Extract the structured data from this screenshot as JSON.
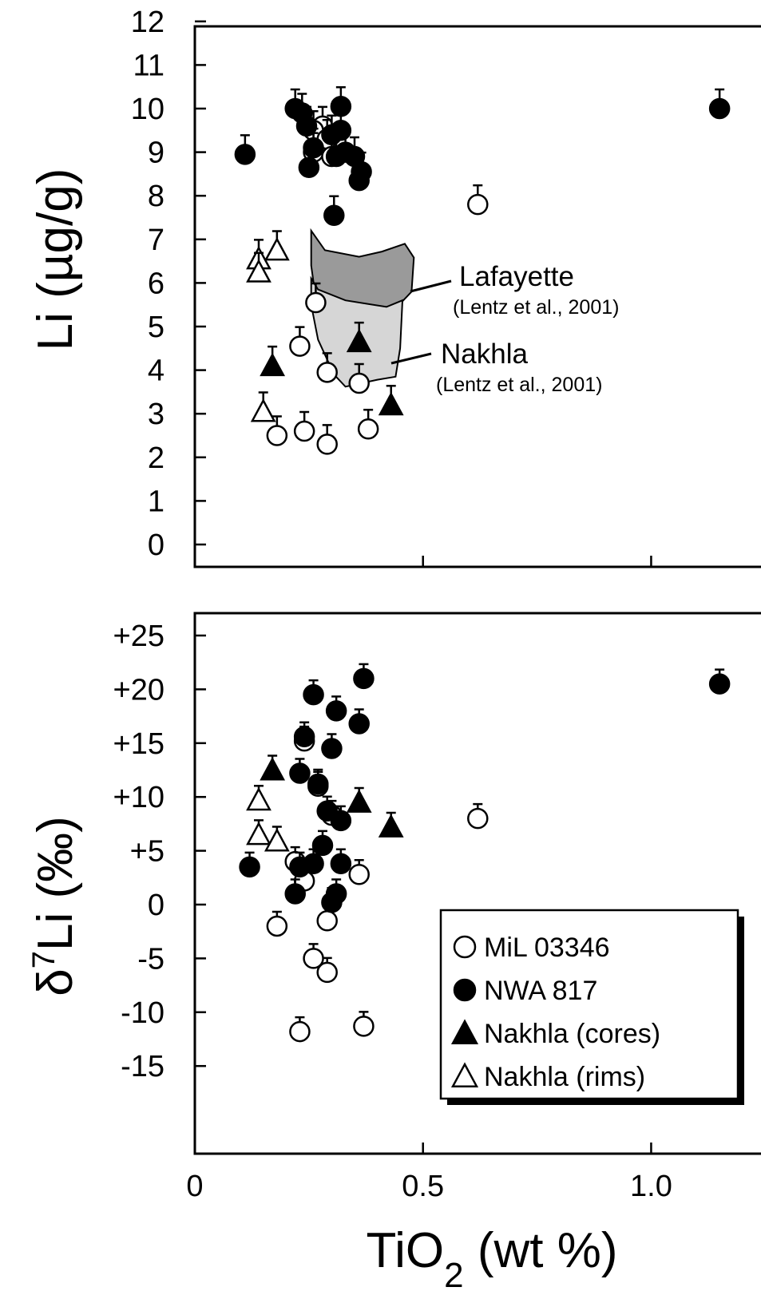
{
  "chart_data": [
    {
      "type": "scatter",
      "ylabel": "Li (µg/g)",
      "ylim": [
        0,
        12
      ],
      "xlim": [
        0,
        1.2
      ],
      "y_ticks": [
        "0",
        "1",
        "2",
        "3",
        "4",
        "5",
        "6",
        "7",
        "8",
        "9",
        "10",
        "11",
        "12"
      ],
      "regions": [
        {
          "name": "Lafayette",
          "note": "(Lentz et al., 2001)",
          "color": "#9a9a9a",
          "outline": [
            [
              0.255,
              7.2
            ],
            [
              0.285,
              6.75
            ],
            [
              0.36,
              6.6
            ],
            [
              0.41,
              6.72
            ],
            [
              0.46,
              6.9
            ],
            [
              0.48,
              6.58
            ],
            [
              0.475,
              5.8
            ],
            [
              0.43,
              5.3
            ],
            [
              0.33,
              5.35
            ],
            [
              0.265,
              5.65
            ],
            [
              0.255,
              6.4
            ]
          ]
        },
        {
          "name": "Nakhla",
          "note": "(Lentz et al., 2001)",
          "color": "#d6d6d6",
          "outline": [
            [
              0.255,
              6.1
            ],
            [
              0.27,
              5.85
            ],
            [
              0.33,
              5.6
            ],
            [
              0.42,
              5.45
            ],
            [
              0.455,
              5.6
            ],
            [
              0.45,
              4.5
            ],
            [
              0.44,
              3.85
            ],
            [
              0.4,
              3.78
            ],
            [
              0.33,
              3.62
            ],
            [
              0.305,
              3.9
            ],
            [
              0.27,
              4.7
            ],
            [
              0.255,
              5.5
            ]
          ]
        }
      ],
      "series": [
        {
          "name": "MiL 03346",
          "marker": "open-circle",
          "points": [
            [
              0.28,
              9.6
            ],
            [
              0.26,
              9.5
            ],
            [
              0.29,
              9.3
            ],
            [
              0.26,
              9.0
            ],
            [
              0.3,
              8.9
            ],
            [
              0.62,
              7.8
            ],
            [
              0.265,
              5.55
            ],
            [
              0.23,
              4.55
            ],
            [
              0.29,
              3.95
            ],
            [
              0.36,
              3.7
            ],
            [
              0.18,
              2.5
            ],
            [
              0.24,
              2.6
            ],
            [
              0.29,
              2.3
            ],
            [
              0.38,
              2.65
            ]
          ]
        },
        {
          "name": "NWA 817",
          "marker": "filled-circle",
          "points": [
            [
              0.11,
              8.95
            ],
            [
              0.22,
              10.0
            ],
            [
              0.235,
              9.9
            ],
            [
              0.32,
              10.05
            ],
            [
              0.245,
              9.6
            ],
            [
              0.26,
              9.1
            ],
            [
              0.3,
              9.4
            ],
            [
              0.32,
              9.5
            ],
            [
              0.33,
              9.0
            ],
            [
              0.31,
              8.9
            ],
            [
              0.35,
              8.9
            ],
            [
              0.365,
              8.55
            ],
            [
              0.36,
              8.35
            ],
            [
              0.25,
              8.65
            ],
            [
              0.305,
              7.55
            ],
            [
              1.15,
              10.0
            ]
          ]
        },
        {
          "name": "Nakhla (cores)",
          "marker": "filled-triangle",
          "points": [
            [
              0.17,
              4.1
            ],
            [
              0.36,
              4.65
            ],
            [
              0.43,
              3.2
            ]
          ]
        },
        {
          "name": "Nakhla (rims)",
          "marker": "open-triangle",
          "points": [
            [
              0.14,
              6.55
            ],
            [
              0.14,
              6.25
            ],
            [
              0.18,
              6.75
            ],
            [
              0.15,
              3.05
            ]
          ]
        }
      ]
    },
    {
      "type": "scatter",
      "xlabel": "TiO2 (wt %)",
      "ylabel": "δ7Li (‰)",
      "ylim": [
        -20,
        30
      ],
      "xlim": [
        0,
        1.2
      ],
      "x_ticks": [
        "0",
        "0.5",
        "1.0"
      ],
      "y_ticks": [
        "+25",
        "+20",
        "+15",
        "+10",
        "+5",
        "0",
        "-5",
        "-10",
        "-15"
      ],
      "legend_position": "bottom-right",
      "series": [
        {
          "name": "MiL 03346",
          "marker": "open-circle",
          "points": [
            [
              0.62,
              8.0
            ],
            [
              0.22,
              4.0
            ],
            [
              0.24,
              2.2
            ],
            [
              0.36,
              2.8
            ],
            [
              0.18,
              -2.0
            ],
            [
              0.29,
              -1.5
            ],
            [
              0.26,
              -5.0
            ],
            [
              0.29,
              -6.3
            ],
            [
              0.23,
              -11.8
            ],
            [
              0.37,
              -11.3
            ],
            [
              0.3,
              8.3
            ],
            [
              0.27,
              11.0
            ],
            [
              0.24,
              15.2
            ]
          ]
        },
        {
          "name": "NWA 817",
          "marker": "filled-circle",
          "points": [
            [
              0.12,
              3.5
            ],
            [
              0.22,
              1.0
            ],
            [
              0.23,
              3.5
            ],
            [
              0.26,
              3.8
            ],
            [
              0.28,
              5.5
            ],
            [
              0.3,
              0.2
            ],
            [
              0.31,
              1.0
            ],
            [
              0.32,
              3.8
            ],
            [
              0.29,
              8.7
            ],
            [
              0.32,
              7.8
            ],
            [
              0.27,
              11.2
            ],
            [
              0.23,
              12.2
            ],
            [
              0.24,
              15.6
            ],
            [
              0.3,
              14.5
            ],
            [
              0.26,
              19.5
            ],
            [
              0.31,
              18.0
            ],
            [
              0.36,
              16.8
            ],
            [
              0.37,
              21.0
            ],
            [
              1.15,
              20.5
            ]
          ]
        },
        {
          "name": "Nakhla (cores)",
          "marker": "filled-triangle",
          "points": [
            [
              0.17,
              12.5
            ],
            [
              0.36,
              9.5
            ],
            [
              0.43,
              7.2
            ]
          ]
        },
        {
          "name": "Nakhla (rims)",
          "marker": "open-triangle",
          "points": [
            [
              0.14,
              9.7
            ],
            [
              0.14,
              6.5
            ],
            [
              0.18,
              5.9
            ]
          ]
        }
      ]
    }
  ]
}
